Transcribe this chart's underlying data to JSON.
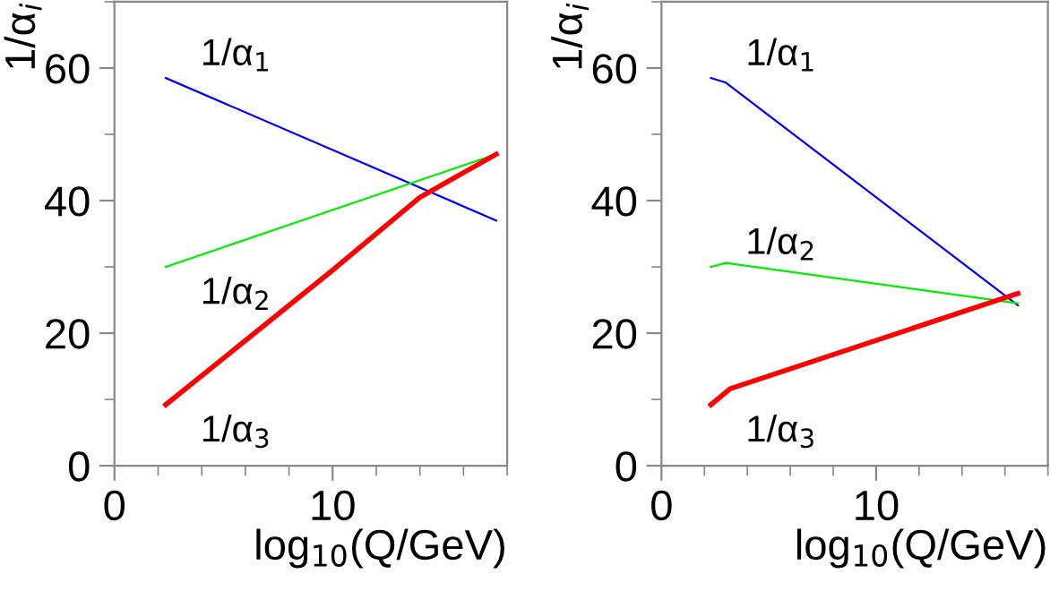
{
  "chart_data": [
    {
      "type": "line",
      "xlabel": "log$_{10}$(Q/GeV)",
      "ylabel": "1/α$_{i}$",
      "xlim": [
        0,
        18
      ],
      "ylim": [
        0,
        70
      ],
      "xticks": [
        0,
        10
      ],
      "yticks": [
        0,
        20,
        40,
        60
      ],
      "grid": false,
      "legend": false,
      "series": [
        {
          "name": "1/α$_{1}$",
          "color": "#0000ff",
          "x": [
            2.35,
            17.5
          ],
          "values": [
            58.5,
            37
          ]
        },
        {
          "name": "1/α$_{2}$",
          "color": "#00ee00",
          "x": [
            2.35,
            17.5
          ],
          "values": [
            30,
            47
          ]
        },
        {
          "name": "1/α$_{3}$",
          "color": "#ff0000",
          "x": [
            2.35,
            10,
            14,
            17.5
          ],
          "values": [
            9.2,
            29.5,
            40.5,
            47
          ]
        }
      ]
    },
    {
      "type": "line",
      "xlabel": "log$_{10}$(Q/GeV)",
      "ylabel": "1/α$_{i}$",
      "xlim": [
        0,
        18
      ],
      "ylim": [
        0,
        70
      ],
      "xticks": [
        0,
        10
      ],
      "yticks": [
        0,
        20,
        40,
        60
      ],
      "grid": false,
      "legend": false,
      "series": [
        {
          "name": "1/α$_{1}$",
          "color": "#0000ff",
          "x": [
            2.3,
            3,
            16.6
          ],
          "values": [
            58.5,
            57.8,
            24.2
          ]
        },
        {
          "name": "1/α$_{2}$",
          "color": "#00ee00",
          "x": [
            2.3,
            3,
            16.6
          ],
          "values": [
            30,
            30.6,
            24.5
          ]
        },
        {
          "name": "1/α$_{3}$",
          "color": "#ff0000",
          "x": [
            2.3,
            3.2,
            16.6
          ],
          "values": [
            9.2,
            11.6,
            26
          ]
        }
      ]
    }
  ]
}
